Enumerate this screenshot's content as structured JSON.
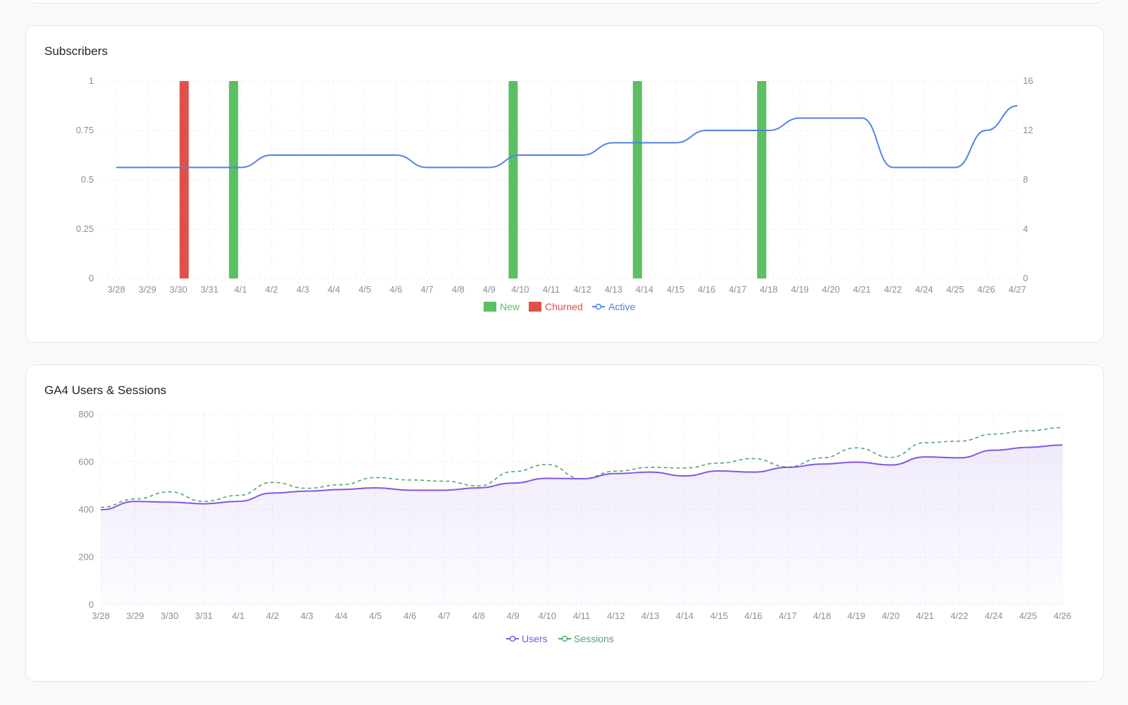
{
  "cards": {
    "subscribers_title": "Subscribers",
    "ga4_title": "GA4 Users & Sessions"
  },
  "colors": {
    "new": "#5cbf63",
    "churned": "#e0504a",
    "active": "#4f82e6",
    "users": "#8257e5",
    "sessions": "#4fa86e"
  },
  "chart_data": [
    {
      "type": "bar",
      "title": "Subscribers",
      "categories": [
        "3/28",
        "3/29",
        "3/30",
        "3/31",
        "4/1",
        "4/2",
        "4/3",
        "4/4",
        "4/5",
        "4/6",
        "4/7",
        "4/8",
        "4/9",
        "4/10",
        "4/11",
        "4/12",
        "4/13",
        "4/14",
        "4/15",
        "4/16",
        "4/17",
        "4/18",
        "4/19",
        "4/20",
        "4/21",
        "4/22",
        "4/24",
        "4/25",
        "4/26",
        "4/27"
      ],
      "ylim_left": [
        0,
        1
      ],
      "yticks_left": [
        "0",
        "0.25",
        "0.5",
        "0.75",
        "1"
      ],
      "ylim_right": [
        0,
        16
      ],
      "yticks_right": [
        "0",
        "4",
        "8",
        "12",
        "16"
      ],
      "grid": true,
      "legend": "bottom-center",
      "series": [
        {
          "name": "New",
          "type": "bar",
          "axis": "left",
          "values": [
            0,
            0,
            0,
            0,
            1,
            0,
            0,
            0,
            0,
            0,
            0,
            0,
            0,
            1,
            0,
            0,
            0,
            1,
            0,
            0,
            0,
            1,
            0,
            0,
            0,
            0,
            0,
            0,
            0,
            0
          ]
        },
        {
          "name": "Churned",
          "type": "bar",
          "axis": "left",
          "values": [
            0,
            0,
            0,
            1,
            0,
            0,
            0,
            0,
            0,
            0,
            0,
            0,
            0,
            0,
            0,
            0,
            0,
            0,
            0,
            0,
            0,
            0,
            0,
            0,
            0,
            0,
            0,
            0,
            0,
            0
          ]
        },
        {
          "name": "Active",
          "type": "line",
          "axis": "right",
          "values": [
            9,
            9,
            9,
            9,
            9,
            10,
            10,
            10,
            10,
            10,
            9,
            9,
            9,
            10,
            10,
            10,
            11,
            11,
            11,
            12,
            12,
            12,
            13,
            13,
            13,
            9,
            9,
            9,
            12,
            14
          ]
        }
      ]
    },
    {
      "type": "area",
      "title": "GA4 Users & Sessions",
      "categories": [
        "3/28",
        "3/29",
        "3/30",
        "3/31",
        "4/1",
        "4/2",
        "4/3",
        "4/4",
        "4/5",
        "4/6",
        "4/7",
        "4/8",
        "4/9",
        "4/10",
        "4/11",
        "4/12",
        "4/13",
        "4/14",
        "4/15",
        "4/16",
        "4/17",
        "4/18",
        "4/19",
        "4/20",
        "4/21",
        "4/22",
        "4/24",
        "4/25",
        "4/26"
      ],
      "ylim": [
        0,
        800
      ],
      "yticks": [
        "0",
        "200",
        "400",
        "600",
        "800"
      ],
      "grid": true,
      "legend": "bottom-center",
      "series": [
        {
          "name": "Users",
          "values": [
            400,
            435,
            432,
            425,
            435,
            470,
            478,
            485,
            492,
            482,
            482,
            492,
            512,
            532,
            530,
            552,
            558,
            542,
            563,
            558,
            578,
            592,
            600,
            588,
            622,
            618,
            650,
            662,
            672
          ]
        },
        {
          "name": "Sessions",
          "values": [
            410,
            445,
            475,
            435,
            460,
            515,
            490,
            505,
            535,
            525,
            520,
            500,
            560,
            590,
            530,
            562,
            578,
            575,
            596,
            615,
            580,
            618,
            660,
            620,
            682,
            688,
            718,
            732,
            745
          ]
        }
      ]
    }
  ]
}
